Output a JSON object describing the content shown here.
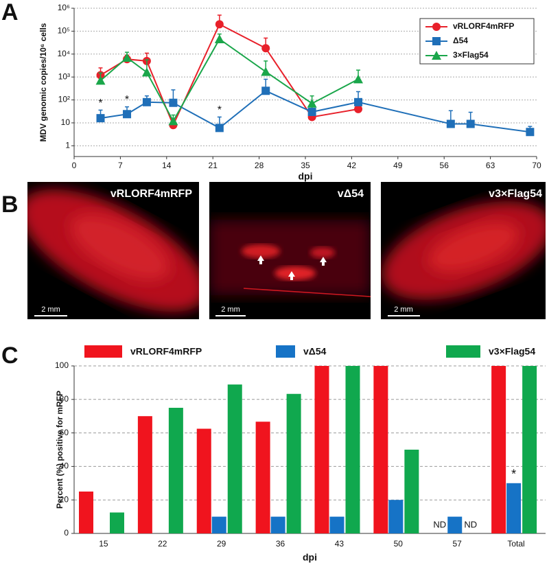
{
  "chart_data": [
    {
      "type": "line",
      "panel": "A",
      "y_label": "MDV genomic copies/10⁶ cells",
      "x_label": "dpi",
      "log_y": true,
      "grid": true,
      "legend": "upper right",
      "xlim": [
        0,
        70
      ],
      "xticks": [
        0,
        7,
        14,
        21,
        28,
        35,
        42,
        49,
        56,
        63,
        70
      ],
      "ylim": [
        0.34,
        1000000
      ],
      "yticks": [
        1,
        10,
        {
          "value": 100,
          "label": "10²"
        },
        {
          "value": 1000,
          "label": "10³"
        },
        {
          "value": 10000,
          "label": "10⁴"
        },
        {
          "value": 100000,
          "label": "10⁵"
        },
        {
          "value": 1000000,
          "label": "10⁶"
        }
      ],
      "series": [
        {
          "name": "vRLORF4mRFP",
          "color": "#e8202a",
          "marker": "circle",
          "x": [
            4,
            8,
            11,
            15,
            22,
            29,
            36,
            43
          ],
          "values": [
            1200,
            6000,
            5000,
            8,
            200000,
            18000,
            18,
            40
          ],
          "errors": [
            1300,
            3000,
            6000,
            4,
            300000,
            32000,
            null,
            null
          ]
        },
        {
          "name": "Δ54",
          "color": "#1f6fb8",
          "marker": "square",
          "x": [
            4,
            8,
            11,
            15,
            22,
            29,
            36,
            43,
            57,
            60,
            69
          ],
          "values": [
            16,
            24,
            80,
            75,
            6,
            250,
            30,
            80,
            9,
            9,
            4
          ],
          "errors": [
            20,
            26,
            70,
            200,
            12,
            550,
            20,
            150,
            25,
            20,
            3
          ]
        },
        {
          "name": "3×Flag54",
          "color": "#1aa64a",
          "marker": "triangle",
          "x": [
            4,
            8,
            11,
            15,
            22,
            29,
            36,
            43
          ],
          "values": [
            700,
            7000,
            1600,
            12,
            45000,
            1700,
            70,
            800
          ],
          "errors": [
            800,
            5000,
            4000,
            10,
            30000,
            3300,
            80,
            1200
          ]
        }
      ],
      "annotations": [
        {
          "text": "*",
          "x": 4,
          "y": 70
        },
        {
          "text": "*",
          "x": 8,
          "y": 100
        },
        {
          "text": "*",
          "x": 22,
          "y": 35
        }
      ]
    },
    {
      "type": "bar",
      "panel": "C",
      "y_label": "Percent (%) positive for mRFP",
      "x_label": "dpi",
      "grid": true,
      "legend": "top",
      "categories": [
        "15",
        "22",
        "29",
        "36",
        "43",
        "50",
        "57",
        "Total"
      ],
      "ylim": [
        0,
        100
      ],
      "yticks": [
        0,
        20,
        40,
        60,
        80,
        100
      ],
      "series": [
        {
          "name": "vRLORF4mRFP",
          "color": "#f0141e",
          "values": [
            25,
            70,
            62.5,
            66.7,
            100,
            100,
            null,
            100
          ],
          "value_labels": [
            null,
            null,
            null,
            null,
            null,
            null,
            "ND",
            null
          ]
        },
        {
          "name": "vΔ54",
          "color": "#1673c6",
          "values": [
            0,
            0,
            10,
            10,
            10,
            20,
            10,
            30
          ]
        },
        {
          "name": "v3×Flag54",
          "color": "#10a84e",
          "values": [
            12.5,
            75,
            88.9,
            83.3,
            100,
            50,
            null,
            100
          ],
          "value_labels": [
            null,
            null,
            null,
            null,
            null,
            null,
            "ND",
            null
          ]
        }
      ],
      "annotations": [
        {
          "text": "*",
          "category": "Total",
          "series": 1
        }
      ]
    }
  ],
  "panel_b": {
    "panel": "B",
    "images": [
      {
        "label": "vRLORF4mRFP",
        "scale": "2 mm"
      },
      {
        "label": "vΔ54",
        "scale": "2 mm"
      },
      {
        "label": "v3×Flag54",
        "scale": "2 mm"
      }
    ]
  }
}
